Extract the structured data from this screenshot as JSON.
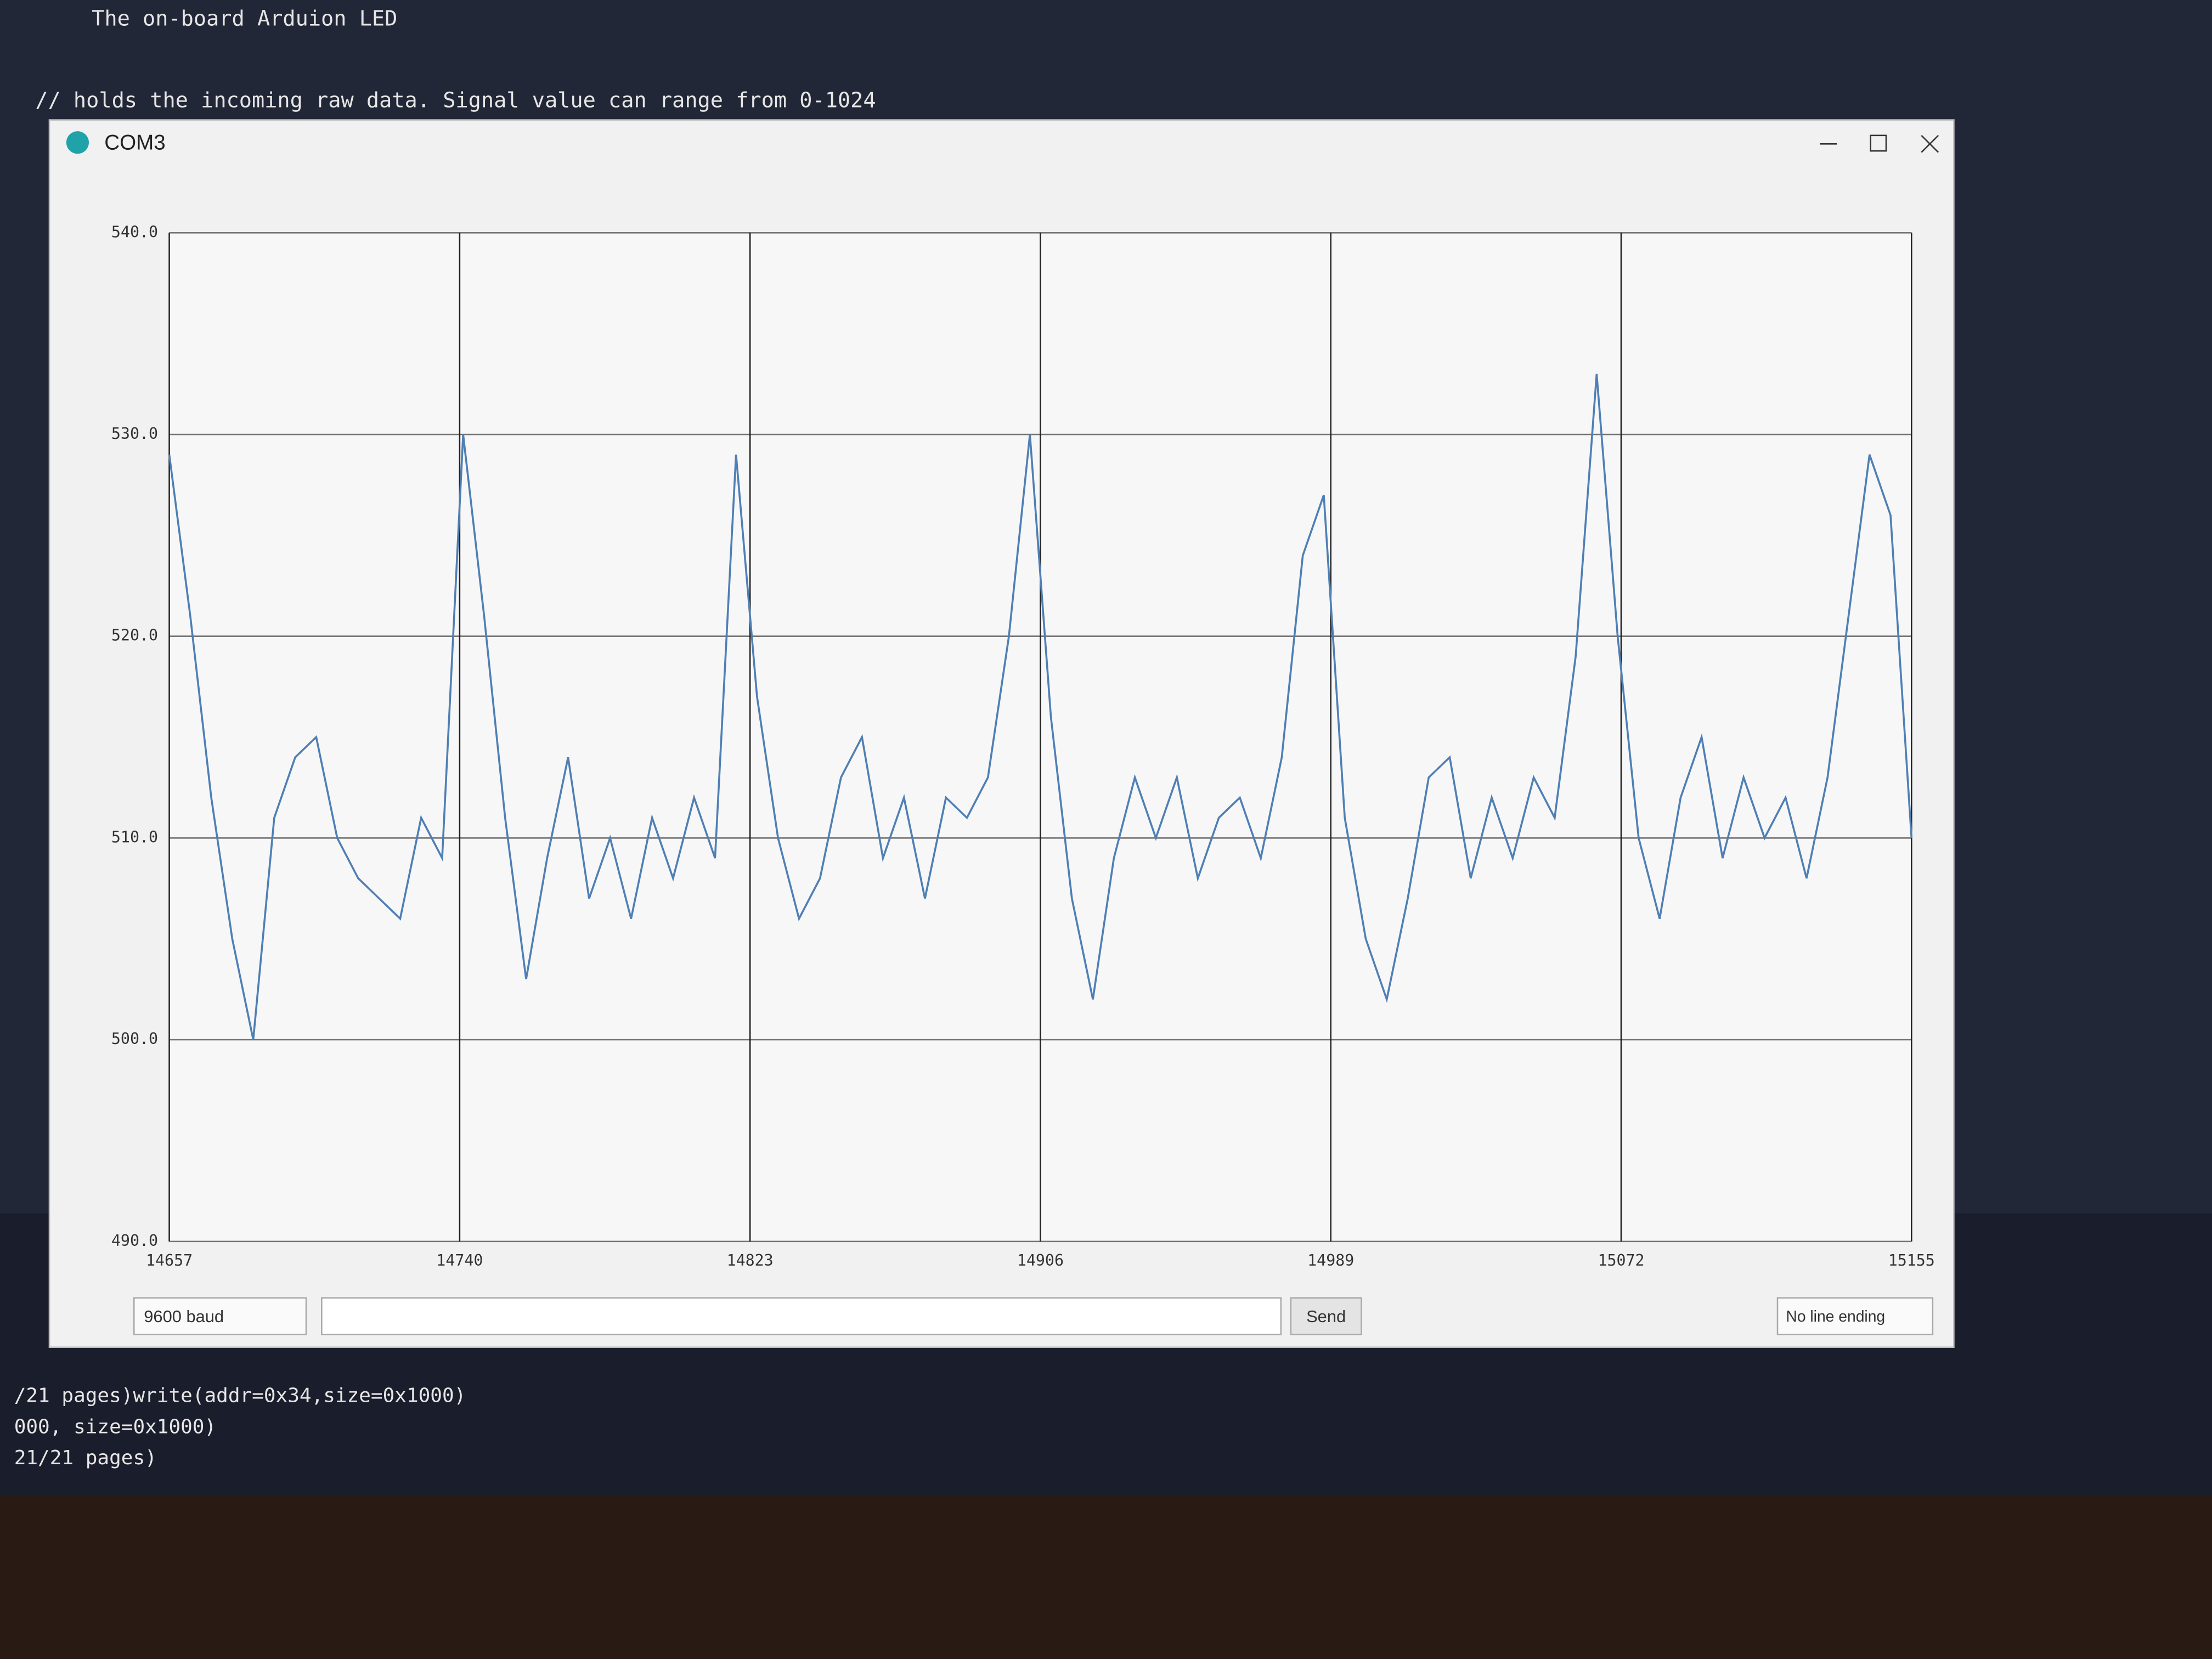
{
  "editor": {
    "lines": [
      "The on-board Arduion LED",
      "// holds the incoming raw data. Signal value can range from 0-1024"
    ]
  },
  "console": {
    "lines": [
      "/21 pages)write(addr=0x34,size=0x1000)",
      "000, size=0x1000)",
      "21/21 pages)"
    ]
  },
  "window": {
    "title": "COM3"
  },
  "chart_data": {
    "type": "line",
    "color": "#4f7fb4",
    "grid": true,
    "x": [
      14657,
      14663,
      14669,
      14675,
      14681,
      14687,
      14693,
      14699,
      14705,
      14711,
      14717,
      14723,
      14729,
      14735,
      14741,
      14747,
      14753,
      14759,
      14765,
      14771,
      14777,
      14783,
      14789,
      14795,
      14801,
      14807,
      14813,
      14819,
      14825,
      14831,
      14837,
      14843,
      14849,
      14855,
      14861,
      14867,
      14873,
      14879,
      14885,
      14891,
      14897,
      14903,
      14909,
      14915,
      14921,
      14927,
      14933,
      14939,
      14945,
      14951,
      14957,
      14963,
      14969,
      14975,
      14981,
      14987,
      14993,
      14999,
      15005,
      15011,
      15017,
      15023,
      15029,
      15035,
      15041,
      15047,
      15053,
      15059,
      15065,
      15071,
      15077,
      15083,
      15089,
      15095,
      15101,
      15107,
      15113,
      15119,
      15125,
      15131,
      15137,
      15143,
      15149,
      15155
    ],
    "values": [
      529,
      521,
      512,
      505,
      500,
      511,
      514,
      515,
      510,
      508,
      507,
      506,
      511,
      509,
      530,
      521,
      511,
      503,
      509,
      514,
      507,
      510,
      506,
      511,
      508,
      512,
      509,
      529,
      517,
      510,
      506,
      508,
      513,
      515,
      509,
      512,
      507,
      512,
      511,
      513,
      520,
      530,
      516,
      507,
      502,
      509,
      513,
      510,
      513,
      508,
      511,
      512,
      509,
      514,
      524,
      527,
      511,
      505,
      502,
      507,
      513,
      514,
      508,
      512,
      509,
      513,
      511,
      519,
      533,
      520,
      510,
      506,
      512,
      515,
      509,
      513,
      510,
      512,
      508,
      513,
      521,
      529,
      526,
      510
    ],
    "xlim": [
      14657,
      15155
    ],
    "xticks": [
      14657,
      14740,
      14823,
      14906,
      14989,
      15072,
      15155
    ],
    "ylim": [
      490,
      540
    ],
    "yticks": [
      {
        "value": 490,
        "label": "490.0"
      },
      {
        "value": 500,
        "label": "500.0"
      },
      {
        "value": 510,
        "label": "510.0"
      },
      {
        "value": 520,
        "label": "520.0"
      },
      {
        "value": 530,
        "label": "530.0"
      },
      {
        "value": 540,
        "label": "540.0"
      }
    ]
  },
  "controls": {
    "send": "Send",
    "baud": "9600 baud",
    "line_ending": "No line ending"
  }
}
